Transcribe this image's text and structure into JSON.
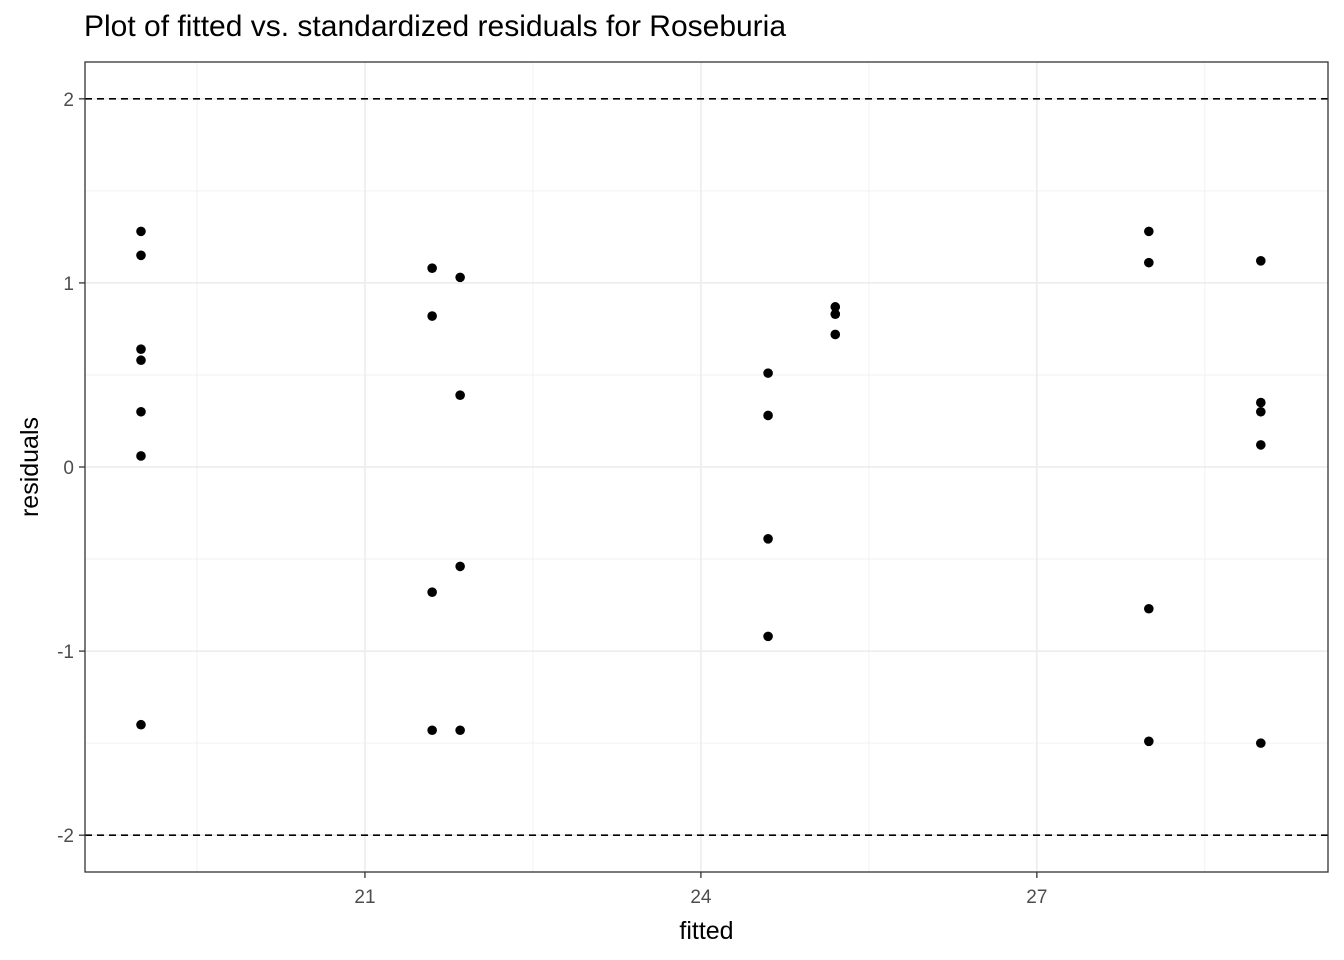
{
  "chart_data": {
    "type": "scatter",
    "title": "Plot of fitted vs. standardized residuals for Roseburia",
    "xlabel": "fitted",
    "ylabel": "residuals",
    "xlim": [
      18.5,
      29.6
    ],
    "ylim": [
      -2.2,
      2.2
    ],
    "x_ticks": [
      21,
      24,
      27
    ],
    "x_tick_labels": [
      "21",
      "24",
      "27"
    ],
    "y_ticks": [
      -2,
      -1,
      0,
      1,
      2
    ],
    "y_tick_labels": [
      "-2",
      "-1",
      "0",
      "1",
      "2"
    ],
    "reference_lines": [
      2,
      -2
    ],
    "grid": true,
    "theme": "black-and-white",
    "point_color": "#000000",
    "points": [
      {
        "x": 19.0,
        "y": 1.28
      },
      {
        "x": 19.0,
        "y": 1.15
      },
      {
        "x": 19.0,
        "y": 0.64
      },
      {
        "x": 19.0,
        "y": 0.58
      },
      {
        "x": 19.0,
        "y": 0.3
      },
      {
        "x": 19.0,
        "y": 0.06
      },
      {
        "x": 19.0,
        "y": -1.4
      },
      {
        "x": 21.6,
        "y": 1.08
      },
      {
        "x": 21.6,
        "y": 0.82
      },
      {
        "x": 21.6,
        "y": -0.68
      },
      {
        "x": 21.6,
        "y": -1.43
      },
      {
        "x": 21.85,
        "y": 1.03
      },
      {
        "x": 21.85,
        "y": 0.39
      },
      {
        "x": 21.85,
        "y": -0.54
      },
      {
        "x": 21.85,
        "y": -1.43
      },
      {
        "x": 24.6,
        "y": 0.51
      },
      {
        "x": 24.6,
        "y": 0.28
      },
      {
        "x": 24.6,
        "y": -0.39
      },
      {
        "x": 24.6,
        "y": -0.92
      },
      {
        "x": 25.2,
        "y": 0.87
      },
      {
        "x": 25.2,
        "y": 0.83
      },
      {
        "x": 25.2,
        "y": 0.72
      },
      {
        "x": 28.0,
        "y": 1.28
      },
      {
        "x": 28.0,
        "y": 1.11
      },
      {
        "x": 28.0,
        "y": -0.77
      },
      {
        "x": 28.0,
        "y": -1.49
      },
      {
        "x": 29.0,
        "y": 1.12
      },
      {
        "x": 29.0,
        "y": 0.35
      },
      {
        "x": 29.0,
        "y": 0.3
      },
      {
        "x": 29.0,
        "y": 0.12
      },
      {
        "x": 29.0,
        "y": -1.5
      }
    ]
  }
}
